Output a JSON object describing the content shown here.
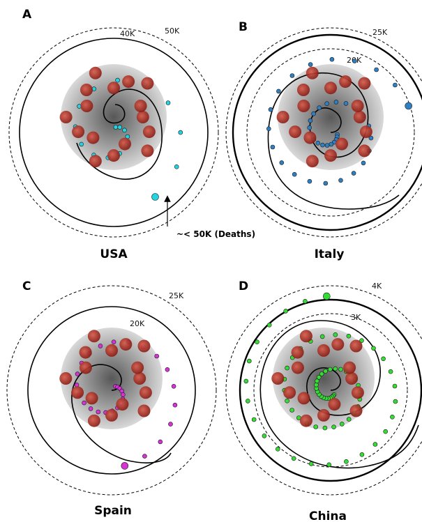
{
  "chart_data": [
    {
      "type": "scatter",
      "panel_label": "A",
      "country": "USA",
      "point_color": "#22d3e0",
      "rings": [
        {
          "label": "40K",
          "style": "solid"
        },
        {
          "label": "50K",
          "style": "dashed"
        }
      ],
      "annotation": "~< 50K (Deaths)",
      "points_on_spiral": 18,
      "final_marker": "large"
    },
    {
      "type": "scatter",
      "panel_label": "B",
      "country": "Italy",
      "point_color": "#2f7fc1",
      "rings": [
        {
          "label": "25K",
          "style": "dashed"
        },
        {
          "label": "20K",
          "style": "dashed"
        }
      ],
      "points_on_spiral": 40,
      "final_marker": "large"
    },
    {
      "type": "scatter",
      "panel_label": "C",
      "country": "Spain",
      "point_color": "#d633d6",
      "rings": [
        {
          "label": "25K",
          "style": "dashed"
        },
        {
          "label": "20K",
          "style": "solid"
        }
      ],
      "points_on_spiral": 30,
      "final_marker": "large"
    },
    {
      "type": "scatter",
      "panel_label": "D",
      "country": "China",
      "point_color": "#33dd33",
      "rings": [
        {
          "label": "4K",
          "style": "dashed"
        },
        {
          "label": "3K",
          "style": "dashed"
        }
      ],
      "points_on_spiral": 70,
      "final_marker": "large"
    }
  ]
}
